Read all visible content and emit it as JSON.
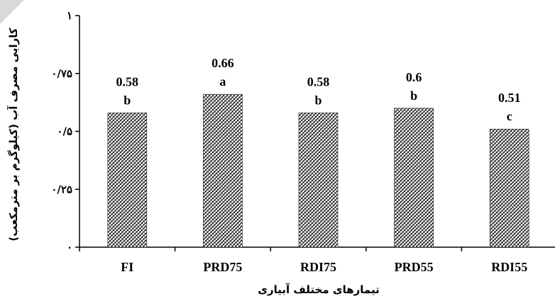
{
  "chart_data": {
    "type": "bar",
    "categories": [
      "FI",
      "PRD75",
      "RDI75",
      "PRD55",
      "RDI55"
    ],
    "values": [
      0.58,
      0.66,
      0.58,
      0.6,
      0.51
    ],
    "value_labels": [
      "0.58",
      "0.66",
      "0.58",
      "0.6",
      "0.51"
    ],
    "significance_letters": [
      "b",
      "a",
      "b",
      "b",
      "c"
    ],
    "ylim": [
      0,
      1
    ],
    "yticks": [
      0,
      0.25,
      0.5,
      0.75,
      1
    ],
    "ytick_labels": [
      "۰",
      "۰/۲۵",
      "۰/۵",
      "۰/۷۵",
      "۱"
    ],
    "ylabel": "کارایی مصرف آب (کیلوگرم بر مترمکعب)",
    "xlabel": "تیمارهای مختلف آبیاری",
    "bar_fill": "crosshatch pattern",
    "grid": false,
    "legend": "none"
  },
  "colors": {
    "bar_pattern_dark": "#000000",
    "bar_pattern_light": "#ffffff",
    "axis": "#000000",
    "corner_mark": "#d9d9d9"
  }
}
